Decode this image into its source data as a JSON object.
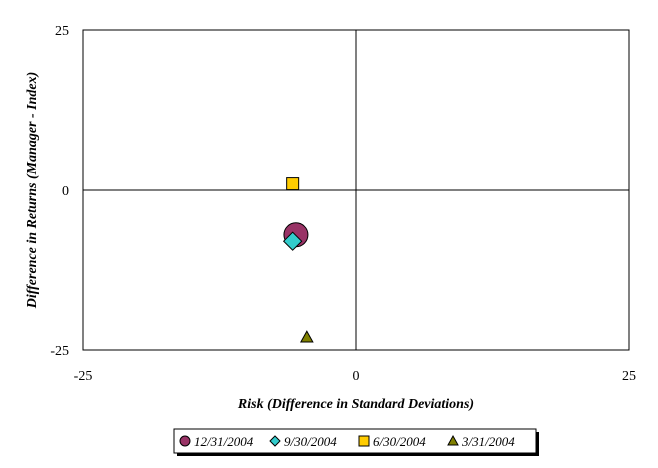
{
  "chart_data": {
    "type": "scatter",
    "xlabel": "Risk (Difference in Standard Deviations)",
    "ylabel": "Difference in Returns (Manager - Index)",
    "xlim": [
      -25,
      25
    ],
    "ylim": [
      -25,
      25
    ],
    "x_ticks": [
      "-25",
      "0",
      "25"
    ],
    "y_ticks": [
      "25",
      "0",
      "-25"
    ],
    "grid": false,
    "legend_position": "bottom",
    "series": [
      {
        "name": "12/31/2004",
        "x": -5.5,
        "y": -7,
        "marker": "circle",
        "color": "#993366"
      },
      {
        "name": "9/30/2004",
        "x": -5.8,
        "y": -8,
        "marker": "diamond",
        "color": "#33cccc"
      },
      {
        "name": "6/30/2004",
        "x": -5.8,
        "y": 1,
        "marker": "square",
        "color": "#ffcc00"
      },
      {
        "name": "3/31/2004",
        "x": -4.5,
        "y": -23,
        "marker": "triangle",
        "color": "#808000"
      }
    ]
  }
}
